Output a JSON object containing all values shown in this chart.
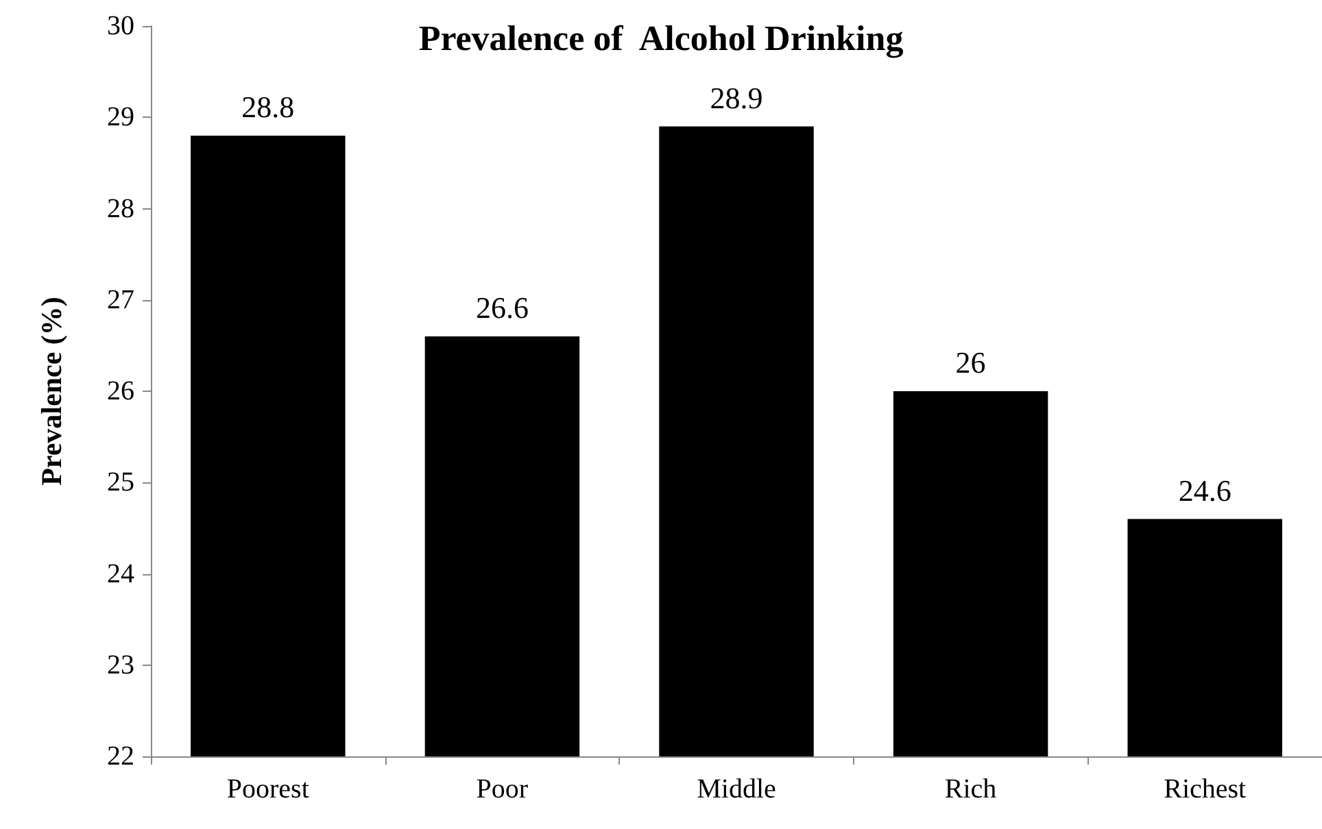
{
  "chart_data": {
    "type": "bar",
    "title": "Prevalence of  Alcohol Drinking",
    "ylabel": "Prevalence (%)",
    "categories": [
      "Poorest",
      "Poor",
      "Middle",
      "Rich",
      "Richest"
    ],
    "values": [
      28.8,
      26.6,
      28.9,
      26,
      24.6
    ],
    "color": "#000000",
    "ylim": [
      22,
      30
    ],
    "yticks": [
      22,
      23,
      24,
      25,
      26,
      27,
      28,
      29,
      30
    ],
    "data_labels": true
  }
}
